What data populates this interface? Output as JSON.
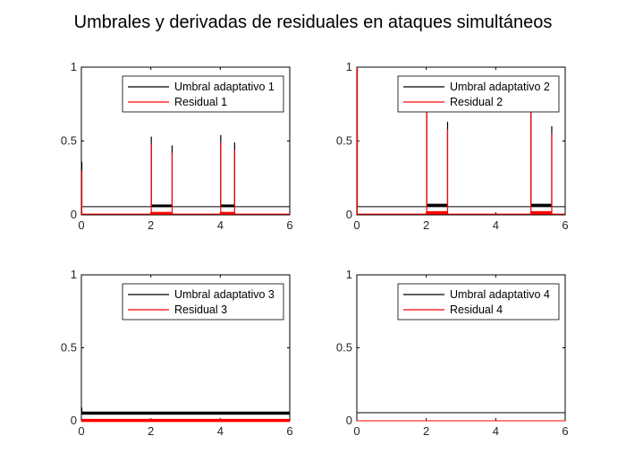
{
  "title": "Umbrales y derivadas de residuales en ataques simultáneos",
  "colors": {
    "threshold": "#000000",
    "residual": "#ff0000",
    "axes": "#000000",
    "background": "#ffffff"
  },
  "chart_data": [
    {
      "type": "line",
      "xlim": [
        0,
        6
      ],
      "ylim": [
        0,
        1
      ],
      "xticks": [
        0,
        2,
        4,
        6
      ],
      "yticks": [
        0,
        0.5,
        1
      ],
      "xtick_labels": [
        "0",
        "2",
        "4",
        "6"
      ],
      "ytick_labels": [
        "0",
        "0.5",
        "1"
      ],
      "legend_position": "top-right",
      "series": [
        {
          "name": "Umbral adaptativo 1",
          "color": "#000000",
          "baseline": 0.055,
          "segments": [
            {
              "x": [
                2.0,
                2.6
              ],
              "level": 0.07
            },
            {
              "x": [
                4.0,
                4.4
              ],
              "level": 0.07
            }
          ],
          "spikes": [
            {
              "x": 0.0,
              "peak": 0.36
            },
            {
              "x": 2.0,
              "peak": 0.53
            },
            {
              "x": 2.6,
              "peak": 0.47
            },
            {
              "x": 4.0,
              "peak": 0.54
            },
            {
              "x": 4.4,
              "peak": 0.49
            }
          ]
        },
        {
          "name": "Residual 1",
          "color": "#ff0000",
          "baseline": 0.005,
          "segments": [
            {
              "x": [
                2.0,
                2.6
              ],
              "level": 0.02
            },
            {
              "x": [
                4.0,
                4.4
              ],
              "level": 0.02
            }
          ],
          "spikes": [
            {
              "x": 0.0,
              "peak": 0.3
            },
            {
              "x": 2.0,
              "peak": 0.48
            },
            {
              "x": 2.6,
              "peak": 0.42
            },
            {
              "x": 4.0,
              "peak": 0.49
            },
            {
              "x": 4.4,
              "peak": 0.44
            }
          ]
        }
      ]
    },
    {
      "type": "line",
      "xlim": [
        0,
        6
      ],
      "ylim": [
        0,
        1
      ],
      "xticks": [
        0,
        2,
        4,
        6
      ],
      "yticks": [
        0,
        0.5,
        1
      ],
      "xtick_labels": [
        "0",
        "2",
        "4",
        "6"
      ],
      "ytick_labels": [
        "0",
        "0.5",
        "1"
      ],
      "legend_position": "top-right",
      "series": [
        {
          "name": "Umbral adaptativo 2",
          "color": "#000000",
          "baseline": 0.055,
          "segments": [
            {
              "x": [
                2.0,
                2.6
              ],
              "level": 0.075
            },
            {
              "x": [
                5.0,
                5.6
              ],
              "level": 0.075
            }
          ],
          "spikes": [
            {
              "x": 0.0,
              "peak": 1.0
            },
            {
              "x": 2.0,
              "peak": 0.78
            },
            {
              "x": 2.6,
              "peak": 0.63
            },
            {
              "x": 5.0,
              "peak": 0.78
            },
            {
              "x": 5.6,
              "peak": 0.6
            }
          ]
        },
        {
          "name": "Residual 2",
          "color": "#ff0000",
          "baseline": 0.005,
          "segments": [
            {
              "x": [
                2.0,
                2.6
              ],
              "level": 0.025
            },
            {
              "x": [
                5.0,
                5.6
              ],
              "level": 0.025
            }
          ],
          "spikes": [
            {
              "x": 0.0,
              "peak": 1.0
            },
            {
              "x": 2.0,
              "peak": 0.74
            },
            {
              "x": 2.6,
              "peak": 0.58
            },
            {
              "x": 5.0,
              "peak": 0.74
            },
            {
              "x": 5.6,
              "peak": 0.55
            }
          ]
        }
      ]
    },
    {
      "type": "line",
      "xlim": [
        0,
        6
      ],
      "ylim": [
        0,
        1
      ],
      "xticks": [
        0,
        2,
        4,
        6
      ],
      "yticks": [
        0,
        0.5,
        1
      ],
      "xtick_labels": [
        "0",
        "2",
        "4",
        "6"
      ],
      "ytick_labels": [
        "0",
        "0.5",
        "1"
      ],
      "legend_position": "top-right",
      "series": [
        {
          "name": "Umbral adaptativo 3",
          "color": "#000000",
          "baseline": 0.06,
          "segments": [
            {
              "x": [
                0,
                6
              ],
              "level": 0.06
            }
          ],
          "spikes": [
            {
              "x": 0.0,
              "peak": 0.09
            }
          ]
        },
        {
          "name": "Residual 3",
          "color": "#ff0000",
          "baseline": 0.01,
          "segments": [
            {
              "x": [
                0,
                6
              ],
              "level": 0.01
            }
          ],
          "spikes": []
        }
      ]
    },
    {
      "type": "line",
      "xlim": [
        0,
        6
      ],
      "ylim": [
        0,
        1
      ],
      "xticks": [
        0,
        2,
        4,
        6
      ],
      "yticks": [
        0,
        0.5,
        1
      ],
      "xtick_labels": [
        "0",
        "2",
        "4",
        "6"
      ],
      "ytick_labels": [
        "0",
        "0.5",
        "1"
      ],
      "legend_position": "top-right",
      "series": [
        {
          "name": "Umbral adaptativo 4",
          "color": "#000000",
          "baseline": 0.055,
          "segments": [],
          "spikes": []
        },
        {
          "name": "Residual 4",
          "color": "#ff0000",
          "baseline": 0.0,
          "segments": [],
          "spikes": []
        }
      ]
    }
  ]
}
